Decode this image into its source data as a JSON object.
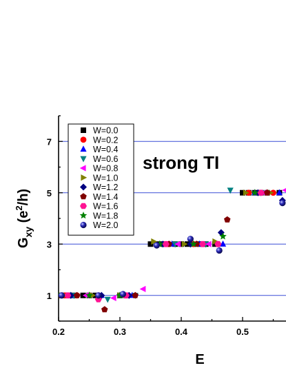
{
  "chart_data": {
    "type": "scatter",
    "xlabel": "E",
    "ylabel_main": "G",
    "ylabel_sub": "xy",
    "ylabel_unit_pre": " (e",
    "ylabel_unit_sup": "2",
    "ylabel_unit_post": "/h)",
    "annotation": "strong TI",
    "xlim": [
      0.2,
      0.57
    ],
    "ylim": [
      0,
      8
    ],
    "x_ticks": [
      0.2,
      0.3,
      0.4,
      0.5
    ],
    "x_tick_labels": [
      "0.2",
      "0.3",
      "0.4",
      "0.5"
    ],
    "y_ticks": [
      1,
      3,
      5,
      7
    ],
    "y_tick_labels": [
      "1",
      "3",
      "5",
      "7"
    ],
    "reference_lines": [
      1,
      3,
      5,
      7
    ],
    "reference_line_color": "#3a4fd6",
    "legend_position": "top-left",
    "series": [
      {
        "name": "W=0.0",
        "marker": "square",
        "color": "#000000",
        "points": [
          [
            0.205,
            1.0
          ],
          [
            0.215,
            1.0
          ],
          [
            0.225,
            1.0
          ],
          [
            0.24,
            1.0
          ],
          [
            0.25,
            1.0
          ],
          [
            0.26,
            1.0
          ],
          [
            0.3,
            1.0
          ],
          [
            0.31,
            1.0
          ],
          [
            0.35,
            3.0
          ],
          [
            0.36,
            3.0
          ],
          [
            0.37,
            3.0
          ],
          [
            0.39,
            3.0
          ],
          [
            0.4,
            3.0
          ],
          [
            0.41,
            3.0
          ],
          [
            0.43,
            3.0
          ],
          [
            0.44,
            3.0
          ],
          [
            0.455,
            3.0
          ],
          [
            0.5,
            5.0
          ],
          [
            0.51,
            5.0
          ],
          [
            0.52,
            5.0
          ],
          [
            0.53,
            5.0
          ],
          [
            0.54,
            5.0
          ],
          [
            0.56,
            5.0
          ]
        ]
      },
      {
        "name": "W=0.2",
        "marker": "circle",
        "color": "#ff0000",
        "points": [
          [
            0.21,
            1.0
          ],
          [
            0.23,
            1.0
          ],
          [
            0.265,
            1.0
          ],
          [
            0.31,
            1.0
          ],
          [
            0.38,
            3.0
          ],
          [
            0.42,
            3.0
          ],
          [
            0.46,
            3.0
          ],
          [
            0.51,
            5.0
          ],
          [
            0.55,
            5.0
          ]
        ]
      },
      {
        "name": "W=0.4",
        "marker": "triangle-up",
        "color": "#0000ff",
        "points": [
          [
            0.22,
            1.0
          ],
          [
            0.27,
            1.0
          ],
          [
            0.32,
            1.0
          ],
          [
            0.385,
            3.0
          ],
          [
            0.43,
            3.0
          ],
          [
            0.468,
            3.0
          ],
          [
            0.52,
            5.0
          ],
          [
            0.56,
            5.0
          ]
        ]
      },
      {
        "name": "W=0.6",
        "marker": "triangle-down",
        "color": "#008080",
        "points": [
          [
            0.225,
            1.0
          ],
          [
            0.28,
            0.85
          ],
          [
            0.325,
            1.0
          ],
          [
            0.39,
            3.0
          ],
          [
            0.44,
            3.0
          ],
          [
            0.48,
            5.1
          ],
          [
            0.53,
            5.0
          ]
        ]
      },
      {
        "name": "W=0.8",
        "marker": "triangle-left",
        "color": "#ff00ff",
        "points": [
          [
            0.2,
            1.0
          ],
          [
            0.245,
            1.0
          ],
          [
            0.29,
            0.9
          ],
          [
            0.338,
            1.25
          ],
          [
            0.395,
            3.0
          ],
          [
            0.445,
            3.0
          ],
          [
            0.535,
            5.0
          ],
          [
            0.57,
            5.1
          ]
        ]
      },
      {
        "name": "W=1.0",
        "marker": "triangle-right",
        "color": "#808000",
        "points": [
          [
            0.21,
            1.0
          ],
          [
            0.255,
            1.0
          ],
          [
            0.3,
            1.0
          ],
          [
            0.355,
            3.1
          ],
          [
            0.405,
            3.0
          ],
          [
            0.455,
            3.1
          ],
          [
            0.505,
            5.0
          ],
          [
            0.545,
            5.0
          ]
        ]
      },
      {
        "name": "W=1.2",
        "marker": "diamond",
        "color": "#000080",
        "points": [
          [
            0.22,
            1.0
          ],
          [
            0.27,
            1.0
          ],
          [
            0.315,
            1.0
          ],
          [
            0.37,
            3.0
          ],
          [
            0.415,
            3.0
          ],
          [
            0.465,
            3.45
          ],
          [
            0.525,
            5.0
          ],
          [
            0.565,
            4.7
          ]
        ]
      },
      {
        "name": "W=1.4",
        "marker": "pentagon",
        "color": "#800000",
        "points": [
          [
            0.2,
            1.0
          ],
          [
            0.23,
            1.0
          ],
          [
            0.275,
            0.45
          ],
          [
            0.325,
            1.0
          ],
          [
            0.38,
            3.0
          ],
          [
            0.425,
            3.0
          ],
          [
            0.475,
            3.95
          ],
          [
            0.54,
            5.0
          ]
        ]
      },
      {
        "name": "W=1.6",
        "marker": "hexagon",
        "color": "#ff1493",
        "points": [
          [
            0.215,
            1.0
          ],
          [
            0.265,
            0.85
          ],
          [
            0.31,
            1.0
          ],
          [
            0.375,
            3.0
          ],
          [
            0.435,
            3.0
          ],
          [
            0.46,
            3.0
          ],
          [
            0.53,
            5.0
          ]
        ]
      },
      {
        "name": "W=1.8",
        "marker": "star",
        "color": "#008000",
        "points": [
          [
            0.2,
            1.0
          ],
          [
            0.25,
            1.0
          ],
          [
            0.3,
            1.0
          ],
          [
            0.365,
            3.0
          ],
          [
            0.42,
            3.0
          ],
          [
            0.468,
            3.3
          ],
          [
            0.52,
            5.0
          ]
        ]
      },
      {
        "name": "W=2.0",
        "marker": "sphere",
        "color": "#1a1aa6",
        "points": [
          [
            0.205,
            1.0
          ],
          [
            0.265,
            1.0
          ],
          [
            0.305,
            1.05
          ],
          [
            0.36,
            2.95
          ],
          [
            0.415,
            3.2
          ],
          [
            0.462,
            2.75
          ],
          [
            0.565,
            4.6
          ]
        ]
      }
    ]
  }
}
